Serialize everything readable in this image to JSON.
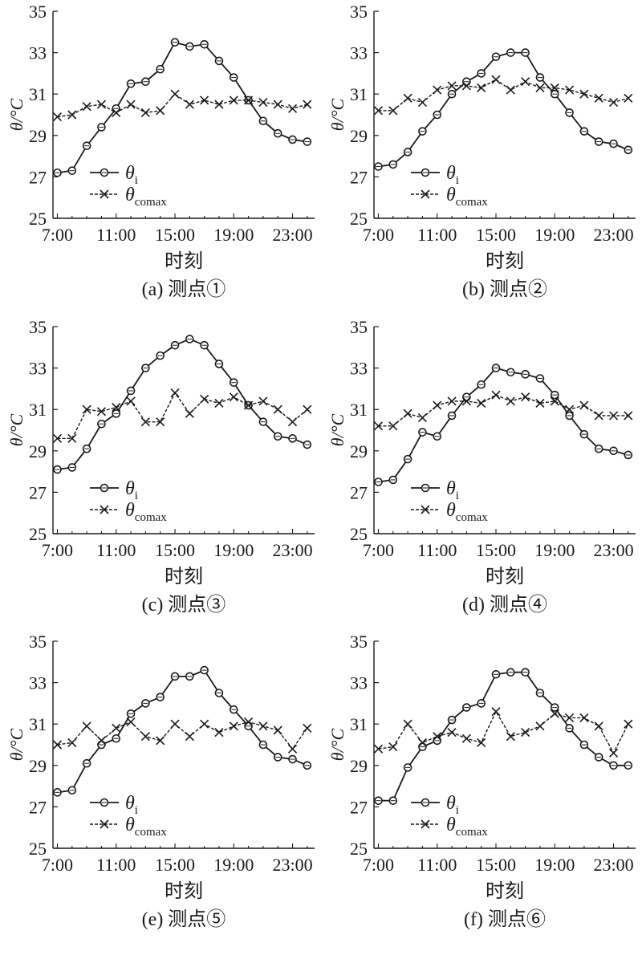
{
  "chart_data": [
    {
      "type": "line",
      "caption": "(a) 测点①",
      "xlabel": "时刻",
      "ylabel": "θ/°C",
      "x": [
        7,
        8,
        9,
        10,
        11,
        12,
        13,
        14,
        15,
        16,
        17,
        18,
        19,
        20,
        21,
        22,
        23,
        24
      ],
      "x_tick_values": [
        7,
        11,
        15,
        19,
        23
      ],
      "x_tick_labels": [
        "7:00",
        "11:00",
        "15:00",
        "19:00",
        "23:00"
      ],
      "xlim": [
        6.7,
        24.5
      ],
      "ylim": [
        25,
        35
      ],
      "y_ticks": [
        25,
        27,
        29,
        31,
        33,
        35
      ],
      "legend_position": "left",
      "series": [
        {
          "name": "θi",
          "label_main": "θ",
          "label_sub": "i",
          "marker": "circle",
          "line": "solid",
          "values": [
            27.2,
            27.3,
            28.5,
            29.4,
            30.3,
            31.5,
            31.6,
            32.2,
            33.5,
            33.3,
            33.4,
            32.6,
            31.8,
            30.7,
            29.7,
            29.1,
            28.8,
            28.7
          ]
        },
        {
          "name": "θcomax",
          "label_main": "θ",
          "label_sub": "comax",
          "marker": "x",
          "line": "dashed",
          "values": [
            29.9,
            30.0,
            30.4,
            30.5,
            30.1,
            30.5,
            30.1,
            30.2,
            31.0,
            30.5,
            30.7,
            30.5,
            30.7,
            30.7,
            30.6,
            30.5,
            30.3,
            30.5
          ]
        }
      ]
    },
    {
      "type": "line",
      "caption": "(b) 测点②",
      "xlabel": "时刻",
      "ylabel": "θ/°C",
      "x": [
        7,
        8,
        9,
        10,
        11,
        12,
        13,
        14,
        15,
        16,
        17,
        18,
        19,
        20,
        21,
        22,
        23,
        24
      ],
      "x_tick_values": [
        7,
        11,
        15,
        19,
        23
      ],
      "x_tick_labels": [
        "7:00",
        "11:00",
        "15:00",
        "19:00",
        "23:00"
      ],
      "xlim": [
        6.7,
        24.5
      ],
      "ylim": [
        25,
        35
      ],
      "y_ticks": [
        25,
        27,
        29,
        31,
        33,
        35
      ],
      "legend_position": "left",
      "series": [
        {
          "name": "θi",
          "label_main": "θ",
          "label_sub": "i",
          "marker": "circle",
          "line": "solid",
          "values": [
            27.5,
            27.6,
            28.2,
            29.2,
            30.0,
            31.0,
            31.6,
            32.0,
            32.8,
            33.0,
            33.0,
            31.8,
            31.0,
            30.1,
            29.2,
            28.7,
            28.6,
            28.3
          ]
        },
        {
          "name": "θcomax",
          "label_main": "θ",
          "label_sub": "comax",
          "marker": "x",
          "line": "dashed",
          "values": [
            30.2,
            30.2,
            30.8,
            30.6,
            31.2,
            31.4,
            31.4,
            31.3,
            31.7,
            31.2,
            31.6,
            31.3,
            31.3,
            31.2,
            31.0,
            30.8,
            30.6,
            30.8
          ]
        }
      ]
    },
    {
      "type": "line",
      "caption": "(c) 测点③",
      "xlabel": "时刻",
      "ylabel": "θ/°C",
      "x": [
        7,
        8,
        9,
        10,
        11,
        12,
        13,
        14,
        15,
        16,
        17,
        18,
        19,
        20,
        21,
        22,
        23,
        24
      ],
      "x_tick_values": [
        7,
        11,
        15,
        19,
        23
      ],
      "x_tick_labels": [
        "7:00",
        "11:00",
        "15:00",
        "19:00",
        "23:00"
      ],
      "xlim": [
        6.7,
        24.5
      ],
      "ylim": [
        25,
        35
      ],
      "y_ticks": [
        25,
        27,
        29,
        31,
        33,
        35
      ],
      "legend_position": "left",
      "series": [
        {
          "name": "θi",
          "label_main": "θ",
          "label_sub": "i",
          "marker": "circle",
          "line": "solid",
          "values": [
            28.1,
            28.2,
            29.1,
            30.3,
            30.8,
            31.9,
            33.0,
            33.6,
            34.1,
            34.4,
            34.1,
            33.2,
            32.3,
            31.2,
            30.4,
            29.7,
            29.6,
            29.3
          ]
        },
        {
          "name": "θcomax",
          "label_main": "θ",
          "label_sub": "comax",
          "marker": "x",
          "line": "dashed",
          "values": [
            29.6,
            29.6,
            31.0,
            30.9,
            31.1,
            31.4,
            30.4,
            30.4,
            31.8,
            30.8,
            31.5,
            31.3,
            31.6,
            31.2,
            31.4,
            31.0,
            30.4,
            31.0
          ]
        }
      ]
    },
    {
      "type": "line",
      "caption": "(d) 测点④",
      "xlabel": "时刻",
      "ylabel": "θ/°C",
      "x": [
        7,
        8,
        9,
        10,
        11,
        12,
        13,
        14,
        15,
        16,
        17,
        18,
        19,
        20,
        21,
        22,
        23,
        24
      ],
      "x_tick_values": [
        7,
        11,
        15,
        19,
        23
      ],
      "x_tick_labels": [
        "7:00",
        "11:00",
        "15:00",
        "19:00",
        "23:00"
      ],
      "xlim": [
        6.7,
        24.5
      ],
      "ylim": [
        25,
        35
      ],
      "y_ticks": [
        25,
        27,
        29,
        31,
        33,
        35
      ],
      "legend_position": "left",
      "series": [
        {
          "name": "θi",
          "label_main": "θ",
          "label_sub": "i",
          "marker": "circle",
          "line": "solid",
          "values": [
            27.5,
            27.6,
            28.6,
            29.9,
            29.7,
            30.7,
            31.6,
            32.2,
            33.0,
            32.8,
            32.7,
            32.5,
            31.7,
            30.7,
            29.8,
            29.1,
            29.0,
            28.8
          ]
        },
        {
          "name": "θcomax",
          "label_main": "θ",
          "label_sub": "comax",
          "marker": "x",
          "line": "dashed",
          "values": [
            30.2,
            30.2,
            30.8,
            30.6,
            31.2,
            31.4,
            31.4,
            31.3,
            31.7,
            31.4,
            31.6,
            31.3,
            31.4,
            31.0,
            31.2,
            30.7,
            30.7,
            30.7
          ]
        }
      ]
    },
    {
      "type": "line",
      "caption": "(e) 测点⑤",
      "xlabel": "时刻",
      "ylabel": "θ/°C",
      "x": [
        7,
        8,
        9,
        10,
        11,
        12,
        13,
        14,
        15,
        16,
        17,
        18,
        19,
        20,
        21,
        22,
        23,
        24
      ],
      "x_tick_values": [
        7,
        11,
        15,
        19,
        23
      ],
      "x_tick_labels": [
        "7:00",
        "11:00",
        "15:00",
        "19:00",
        "23:00"
      ],
      "xlim": [
        6.7,
        24.5
      ],
      "ylim": [
        25,
        35
      ],
      "y_ticks": [
        25,
        27,
        29,
        31,
        33,
        35
      ],
      "legend_position": "left",
      "series": [
        {
          "name": "θi",
          "label_main": "θ",
          "label_sub": "i",
          "marker": "circle",
          "line": "solid",
          "values": [
            27.7,
            27.8,
            29.1,
            30.0,
            30.3,
            31.5,
            32.0,
            32.3,
            33.3,
            33.3,
            33.6,
            32.5,
            31.7,
            30.9,
            30.0,
            29.4,
            29.3,
            29.0
          ]
        },
        {
          "name": "θcomax",
          "label_main": "θ",
          "label_sub": "comax",
          "marker": "x",
          "line": "dashed",
          "values": [
            30.0,
            30.1,
            30.9,
            30.2,
            30.8,
            31.1,
            30.4,
            30.2,
            31.0,
            30.4,
            31.0,
            30.6,
            30.9,
            31.1,
            30.9,
            30.7,
            29.8,
            30.8
          ]
        }
      ]
    },
    {
      "type": "line",
      "caption": "(f) 测点⑥",
      "xlabel": "时刻",
      "ylabel": "θ/°C",
      "x": [
        7,
        8,
        9,
        10,
        11,
        12,
        13,
        14,
        15,
        16,
        17,
        18,
        19,
        20,
        21,
        22,
        23,
        24
      ],
      "x_tick_values": [
        7,
        11,
        15,
        19,
        23
      ],
      "x_tick_labels": [
        "7:00",
        "11:00",
        "15:00",
        "19:00",
        "23:00"
      ],
      "xlim": [
        6.7,
        24.5
      ],
      "ylim": [
        25,
        35
      ],
      "y_ticks": [
        25,
        27,
        29,
        31,
        33,
        35
      ],
      "legend_position": "left",
      "series": [
        {
          "name": "θi",
          "label_main": "θ",
          "label_sub": "i",
          "marker": "circle",
          "line": "solid",
          "values": [
            27.3,
            27.3,
            28.9,
            29.9,
            30.2,
            31.2,
            31.8,
            32.0,
            33.4,
            33.5,
            33.5,
            32.5,
            31.8,
            30.8,
            30.0,
            29.4,
            29.0,
            29.0
          ]
        },
        {
          "name": "θcomax",
          "label_main": "θ",
          "label_sub": "comax",
          "marker": "x",
          "line": "dashed",
          "values": [
            29.8,
            29.9,
            31.0,
            30.1,
            30.4,
            30.6,
            30.3,
            30.1,
            31.6,
            30.4,
            30.6,
            30.9,
            31.5,
            31.3,
            31.3,
            30.9,
            29.6,
            31.0
          ]
        }
      ]
    }
  ]
}
